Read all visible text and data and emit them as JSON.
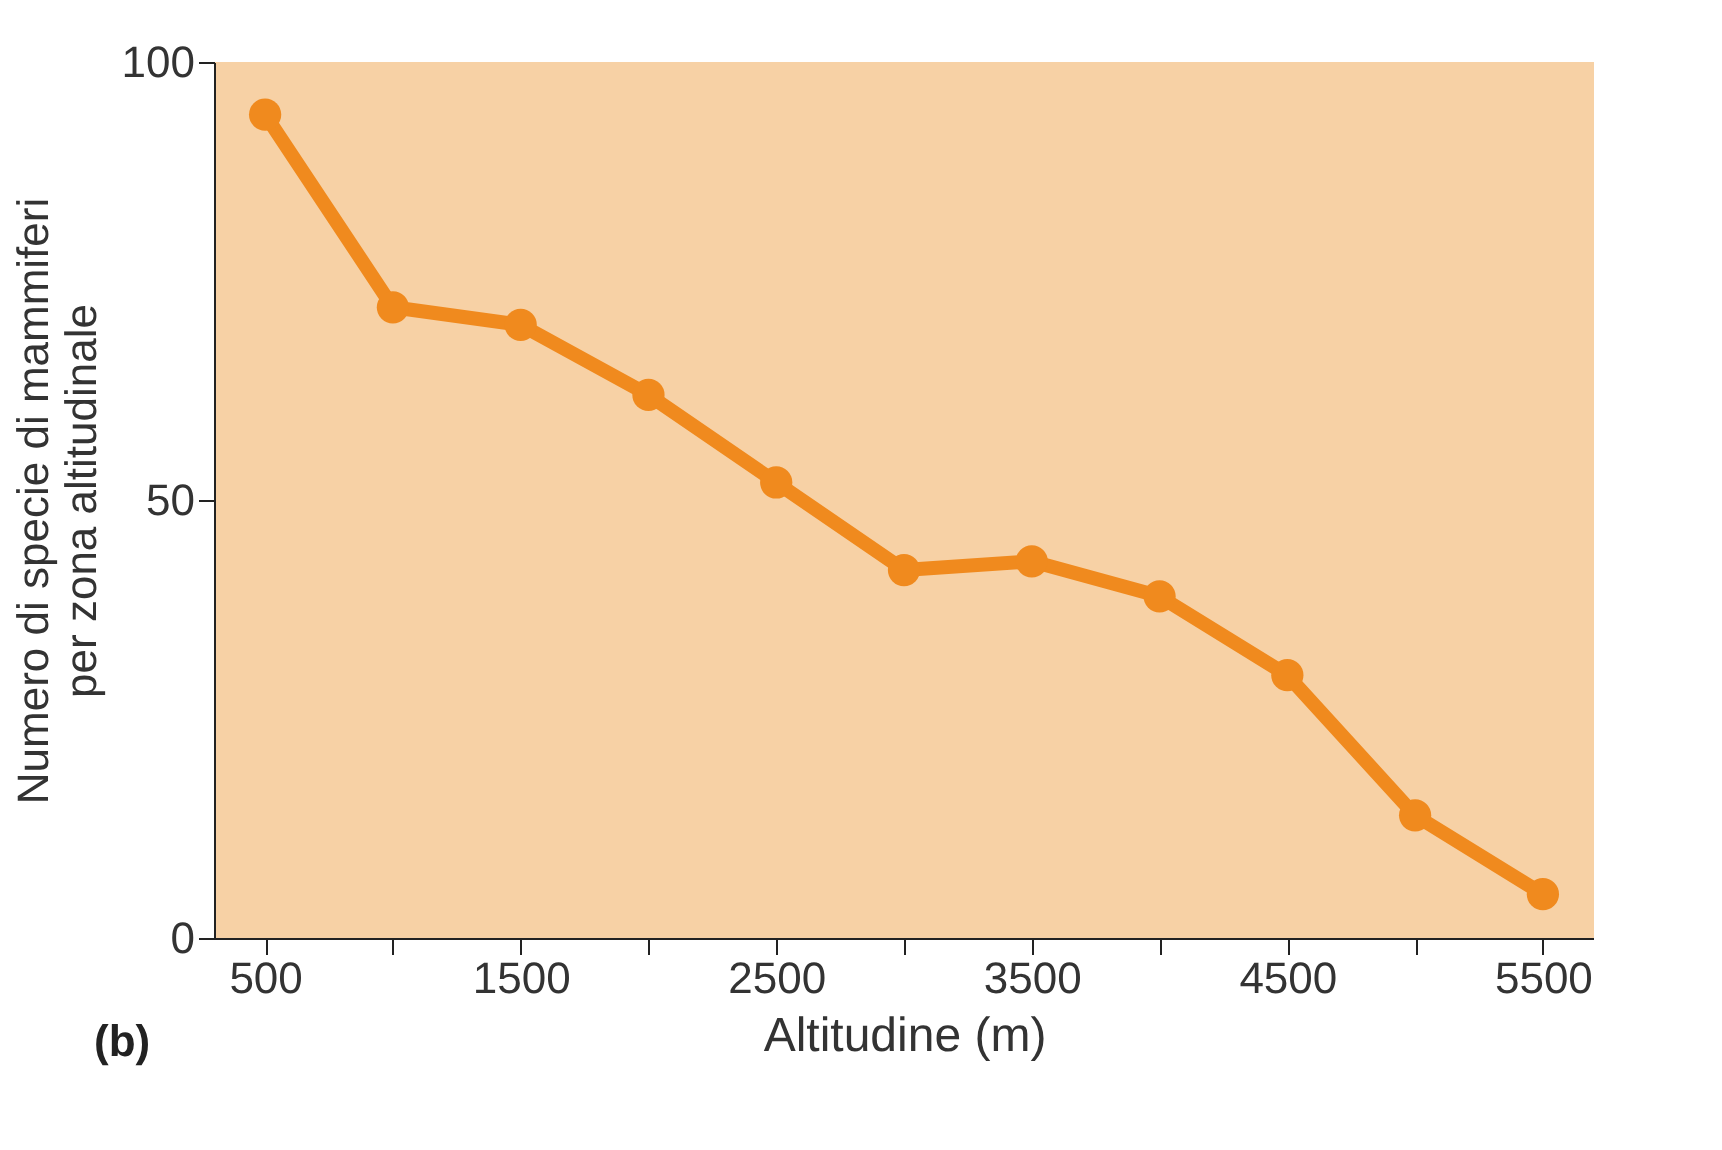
{
  "chart_data": {
    "type": "line",
    "xlabel": "Altitudine (m)",
    "ylabel": "Numero di specie di mammiferi per zona altitudinale",
    "x": [
      500,
      1000,
      1500,
      2000,
      2500,
      3000,
      3500,
      4000,
      4500,
      5000,
      5500
    ],
    "series": [
      {
        "color": "#f08a1e",
        "values": [
          94,
          72,
          70,
          62,
          52,
          42,
          43,
          39,
          30,
          14,
          5
        ]
      }
    ],
    "xlim": [
      300,
      5700
    ],
    "ylim": [
      0,
      100
    ],
    "xticks": [
      500,
      {
        "value": 1000,
        "label": null
      },
      1500,
      {
        "value": 2000,
        "label": null
      },
      2500,
      {
        "value": 3000,
        "label": null
      },
      3500,
      {
        "value": 4000,
        "label": null
      },
      4500,
      {
        "value": 5000,
        "label": null
      },
      5500
    ],
    "yticks": [
      0,
      50,
      100
    ],
    "grid": false,
    "marker": "circle",
    "line_style": "solid",
    "annotations": [
      "(b)"
    ]
  }
}
